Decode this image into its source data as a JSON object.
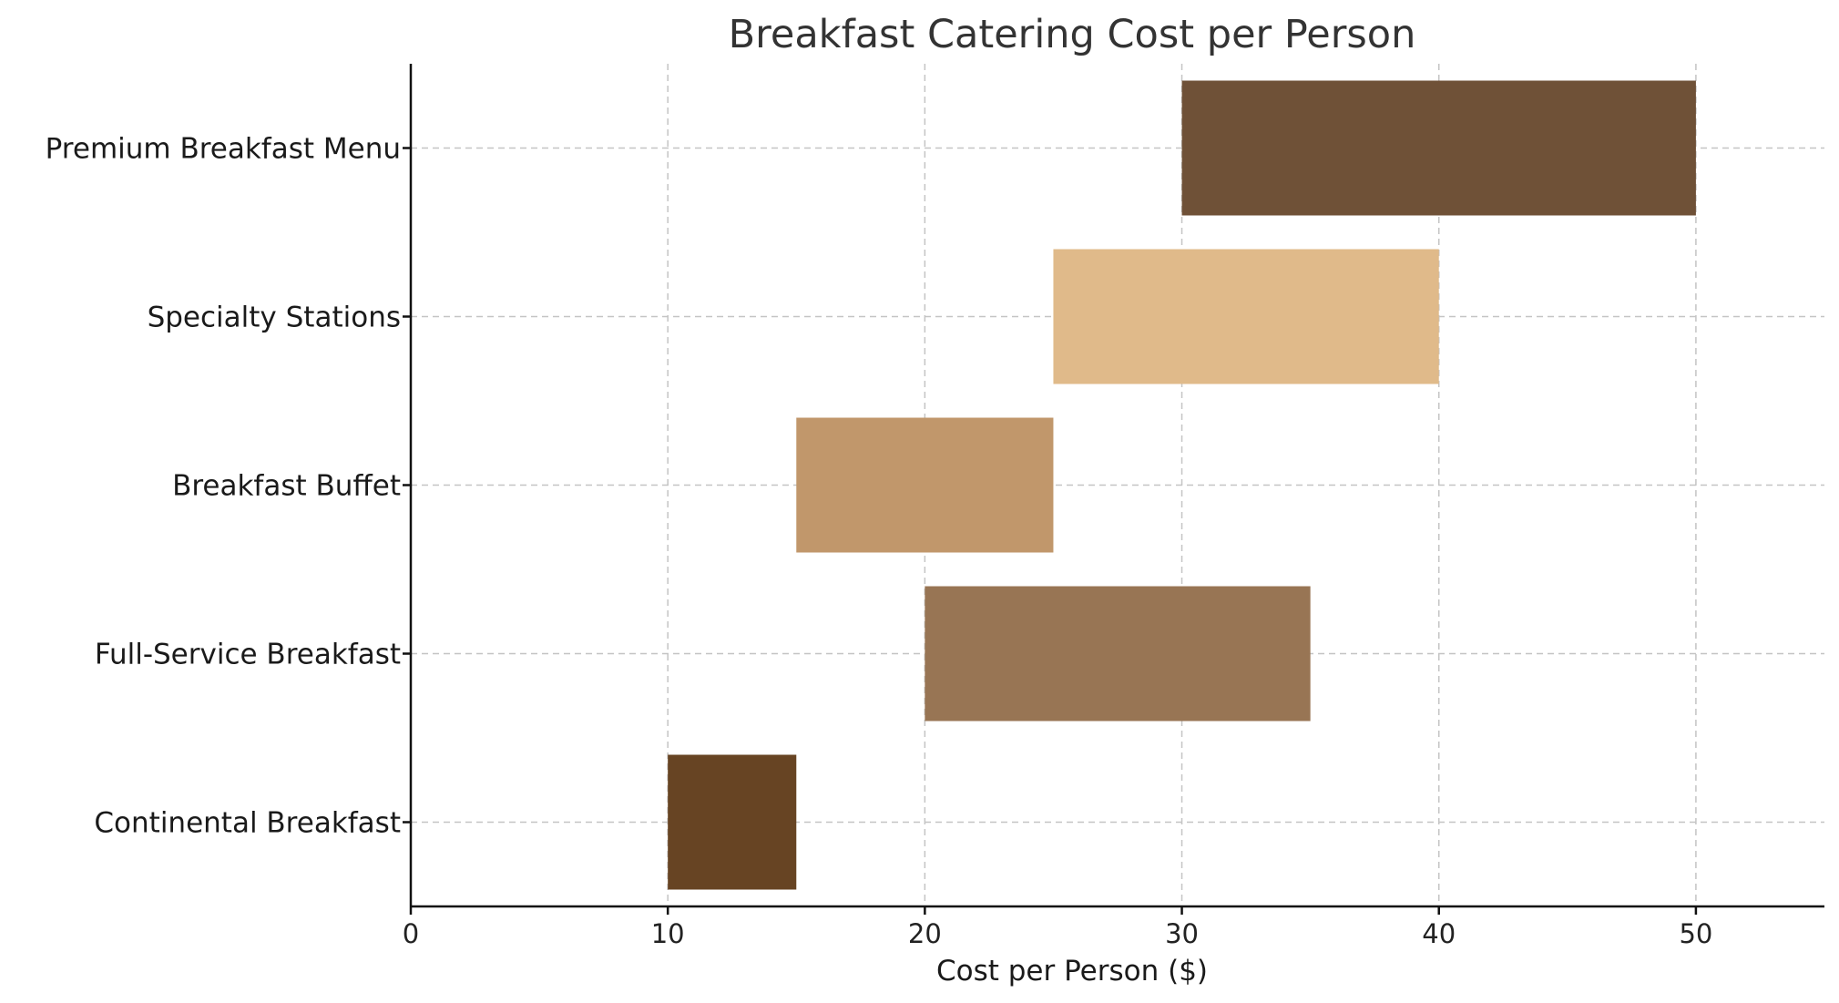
{
  "chart_data": {
    "type": "bar",
    "orientation": "horizontal-range",
    "title": "Breakfast Catering Cost per Person",
    "xlabel": "Cost per Person ($)",
    "ylabel": "",
    "xlim": [
      0,
      55
    ],
    "xticks": [
      0,
      10,
      20,
      30,
      40,
      50
    ],
    "grid": true,
    "categories": [
      "Continental Breakfast",
      "Full-Service Breakfast",
      "Breakfast Buffet",
      "Specialty Stations",
      "Premium Breakfast Menu"
    ],
    "ranges": [
      {
        "category": "Continental Breakfast",
        "min": 10,
        "max": 15,
        "color": "#674423"
      },
      {
        "category": "Full-Service Breakfast",
        "min": 20,
        "max": 35,
        "color": "#987554"
      },
      {
        "category": "Breakfast Buffet",
        "min": 15,
        "max": 25,
        "color": "#c1976b"
      },
      {
        "category": "Specialty Stations",
        "min": 25,
        "max": 40,
        "color": "#e0ba8a"
      },
      {
        "category": "Premium Breakfast Menu",
        "min": 30,
        "max": 50,
        "color": "#6f5137"
      }
    ]
  }
}
